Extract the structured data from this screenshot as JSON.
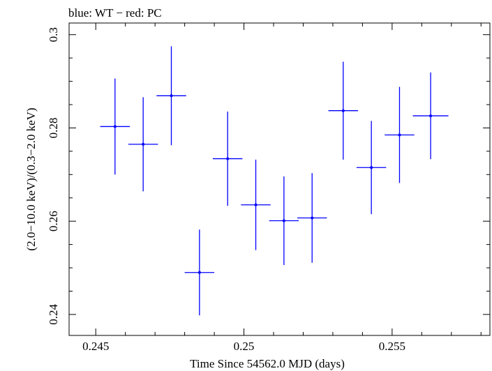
{
  "chart_data": {
    "type": "scatter",
    "title": "blue: WT − red: PC",
    "xlabel": "Time Since 54562.0 MJD (days)",
    "ylabel": "(2.0−10.0 keV)/(0.3−2.0 keV)",
    "xlim": [
      0.2441,
      0.2583
    ],
    "ylim": [
      0.2355,
      0.3025
    ],
    "xticks": [
      0.245,
      0.25,
      0.255
    ],
    "xtick_labels": [
      "0.245",
      "0.25",
      "0.255"
    ],
    "yticks": [
      0.24,
      0.26,
      0.28,
      0.3
    ],
    "ytick_labels": [
      "0.24",
      "0.26",
      "0.28",
      "0.3"
    ],
    "grid": false,
    "series": [
      {
        "color": "#0000ff",
        "points": [
          {
            "x": 0.24565,
            "xerr": 0.0005,
            "y": 0.2803,
            "yerr": 0.0103
          },
          {
            "x": 0.2466,
            "xerr": 0.0005,
            "y": 0.2765,
            "yerr": 0.0101
          },
          {
            "x": 0.24755,
            "xerr": 0.0005,
            "y": 0.2869,
            "yerr": 0.0106
          },
          {
            "x": 0.2485,
            "xerr": 0.0005,
            "y": 0.249,
            "yerr": 0.0092
          },
          {
            "x": 0.24945,
            "xerr": 0.0005,
            "y": 0.2734,
            "yerr": 0.0101
          },
          {
            "x": 0.2504,
            "xerr": 0.0005,
            "y": 0.2635,
            "yerr": 0.0097
          },
          {
            "x": 0.25135,
            "xerr": 0.0005,
            "y": 0.2601,
            "yerr": 0.0095
          },
          {
            "x": 0.2523,
            "xerr": 0.0005,
            "y": 0.2607,
            "yerr": 0.0096
          },
          {
            "x": 0.25335,
            "xerr": 0.0005,
            "y": 0.2837,
            "yerr": 0.0105
          },
          {
            "x": 0.2543,
            "xerr": 0.0005,
            "y": 0.2715,
            "yerr": 0.01
          },
          {
            "x": 0.25525,
            "xerr": 0.0005,
            "y": 0.2785,
            "yerr": 0.0103
          },
          {
            "x": 0.2563,
            "xerr": 0.0006,
            "y": 0.2826,
            "yerr": 0.0093
          }
        ]
      }
    ]
  }
}
